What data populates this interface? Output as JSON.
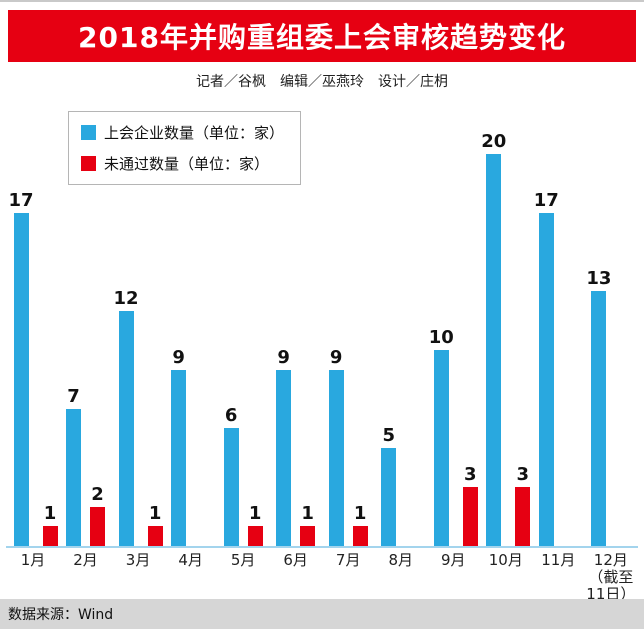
{
  "header": {
    "title": "2018年并购重组委上会审核趋势变化",
    "byline": "记者／谷枫　编辑／巫燕玲　设计／庄枂"
  },
  "footer": {
    "source": "数据来源：Wind"
  },
  "colors": {
    "banner_red": "#e60012",
    "bar_blue": "#29a8df",
    "bar_red": "#e60012",
    "axis_line": "#a3d4ed",
    "footer_gray": "#d6d6d6"
  },
  "chart_data": {
    "type": "bar",
    "title": "2018年并购重组委上会审核趋势变化",
    "xlabel": "",
    "ylabel": "",
    "ylim": [
      0,
      20
    ],
    "grid": false,
    "legend_position": "top-left",
    "categories": [
      "1月",
      "2月",
      "3月",
      "4月",
      "5月",
      "6月",
      "7月",
      "8月",
      "9月",
      "10月",
      "11月",
      "12月\n（截至\n11日）"
    ],
    "series": [
      {
        "name": "上会企业数量（单位：家）",
        "color": "#29a8df",
        "values": [
          17,
          7,
          12,
          9,
          6,
          9,
          9,
          5,
          10,
          20,
          17,
          13
        ]
      },
      {
        "name": "未通过数量（单位：家）",
        "color": "#e60012",
        "values": [
          1,
          2,
          1,
          0,
          1,
          1,
          1,
          0,
          3,
          3,
          0,
          0
        ]
      }
    ]
  }
}
